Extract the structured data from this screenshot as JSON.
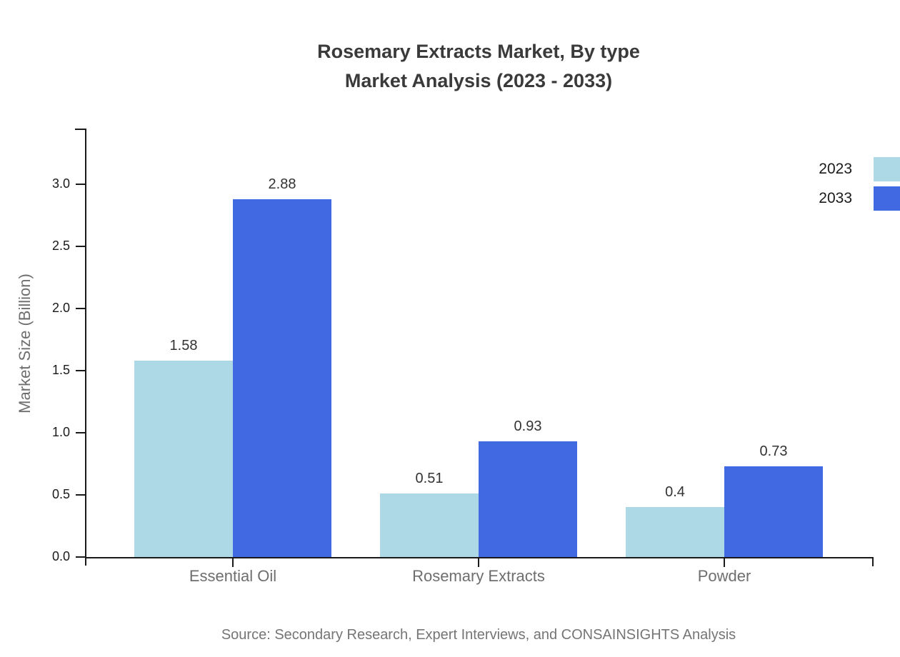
{
  "title": {
    "line1": "Rosemary Extracts Market, By type",
    "line2": "Market Analysis (2023 - 2033)"
  },
  "chart_data": {
    "type": "bar",
    "categories": [
      "Essential Oil",
      "Rosemary Extracts",
      "Powder"
    ],
    "series": [
      {
        "name": "2023",
        "color": "#ADD8E6",
        "values": [
          1.58,
          0.51,
          0.4
        ],
        "value_labels": [
          "1.58",
          "0.51",
          "0.4"
        ]
      },
      {
        "name": "2033",
        "color": "#4169E1",
        "values": [
          2.88,
          0.93,
          0.73
        ],
        "value_labels": [
          "2.88",
          "0.93",
          "0.73"
        ]
      }
    ],
    "title": "Rosemary Extracts Market, By type Market Analysis (2023 - 2033)",
    "xlabel": "",
    "ylabel": "Market Size (Billion)",
    "ylim": [
      0,
      3.45
    ],
    "yticks": [
      0.0,
      0.5,
      1.0,
      1.5,
      2.0,
      2.5,
      3.0
    ],
    "ytick_labels": [
      "0.0",
      "0.5",
      "1.0",
      "1.5",
      "2.0",
      "2.5",
      "3.0"
    ],
    "grid": false,
    "legend_position": "top-right",
    "bar_grouping": "grouped"
  },
  "source": "Source: Secondary Research, Expert Interviews, and CONSAINSIGHTS Analysis",
  "colors": {
    "series_2023": "#ADD8E6",
    "series_2033": "#4169E1",
    "title_text": "#3a3a3a",
    "axis_line": "#1a1a1a",
    "tick_label_text": "#1a1a1a",
    "category_label_text": "#6e6e6e",
    "value_label_text": "#333333",
    "source_text": "#757575",
    "background": "#ffffff"
  }
}
